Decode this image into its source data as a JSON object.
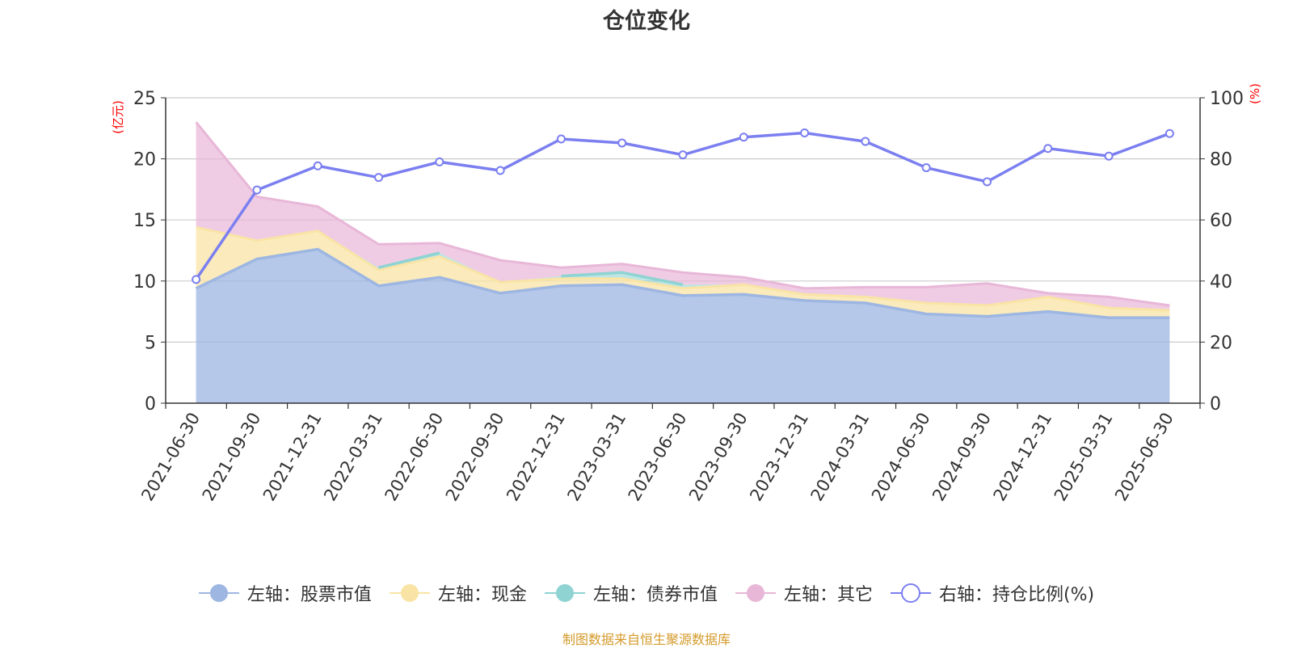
{
  "title": "仓位变化",
  "source": "制图数据来自恒生聚源数据库",
  "left_axis_unit": "(亿元)",
  "right_axis_unit": "(%)",
  "colors": {
    "stock": "#9db6e2",
    "cash": "#f9e4a6",
    "bond": "#8fd3d3",
    "other": "#e8b7d8",
    "ratio": "#7b7ff0",
    "axis_unit": "#ff0000",
    "grid": "#cccccc"
  },
  "legend": [
    {
      "label": "左轴：股票市值",
      "key": "stock",
      "icon": "filled-circle"
    },
    {
      "label": "左轴：现金",
      "key": "cash",
      "icon": "filled-circle"
    },
    {
      "label": "左轴：债券市值",
      "key": "bond",
      "icon": "filled-circle"
    },
    {
      "label": "左轴：其它",
      "key": "other",
      "icon": "filled-circle"
    },
    {
      "label": "右轴：持仓比例(%)",
      "key": "ratio",
      "icon": "hollow-circle"
    }
  ],
  "chart_data": {
    "type": "area",
    "stacked": true,
    "categories": [
      "2021-06-30",
      "2021-09-30",
      "2021-12-31",
      "2022-03-31",
      "2022-06-30",
      "2022-09-30",
      "2022-12-31",
      "2023-03-31",
      "2023-06-30",
      "2023-09-30",
      "2023-12-31",
      "2024-03-31",
      "2024-06-30",
      "2024-09-30",
      "2024-12-31",
      "2025-03-31",
      "2025-06-30"
    ],
    "y_left": {
      "label": "(亿元)",
      "min": 0,
      "max": 25,
      "ticks": [
        0,
        5,
        10,
        15,
        20,
        25
      ]
    },
    "y_right": {
      "label": "(%)",
      "min": 0,
      "max": 100,
      "ticks": [
        0,
        20,
        40,
        60,
        80,
        100
      ]
    },
    "grid": true,
    "legend_position": "bottom",
    "series": [
      {
        "name": "左轴：股票市值",
        "axis": "left",
        "values": [
          9.4,
          11.8,
          12.6,
          9.6,
          10.3,
          9.0,
          9.6,
          9.7,
          8.8,
          8.9,
          8.4,
          8.2,
          7.3,
          7.1,
          7.5,
          7.0,
          7.0
        ]
      },
      {
        "name": "左轴：现金",
        "axis": "left",
        "values": [
          5.0,
          1.5,
          1.5,
          1.3,
          1.7,
          0.9,
          0.6,
          0.5,
          0.6,
          0.8,
          0.5,
          0.5,
          0.9,
          0.9,
          1.2,
          0.8,
          0.6
        ]
      },
      {
        "name": "左轴：债券市值",
        "axis": "left",
        "values": [
          null,
          null,
          null,
          0.2,
          0.3,
          null,
          0.2,
          0.5,
          0.3,
          null,
          null,
          null,
          null,
          null,
          null,
          null,
          null
        ]
      },
      {
        "name": "左轴：其它",
        "axis": "left",
        "values": [
          8.6,
          3.6,
          2.0,
          1.9,
          0.8,
          1.8,
          0.7,
          0.7,
          1.0,
          0.6,
          0.5,
          0.8,
          1.3,
          1.8,
          0.3,
          0.9,
          0.4
        ]
      },
      {
        "name": "右轴：持仓比例(%)",
        "axis": "right",
        "type": "line",
        "values": [
          40.5,
          69.8,
          77.7,
          73.9,
          79.0,
          76.2,
          86.5,
          85.2,
          81.3,
          87.1,
          88.5,
          85.7,
          77.1,
          72.5,
          83.4,
          80.9,
          88.3
        ]
      }
    ]
  }
}
